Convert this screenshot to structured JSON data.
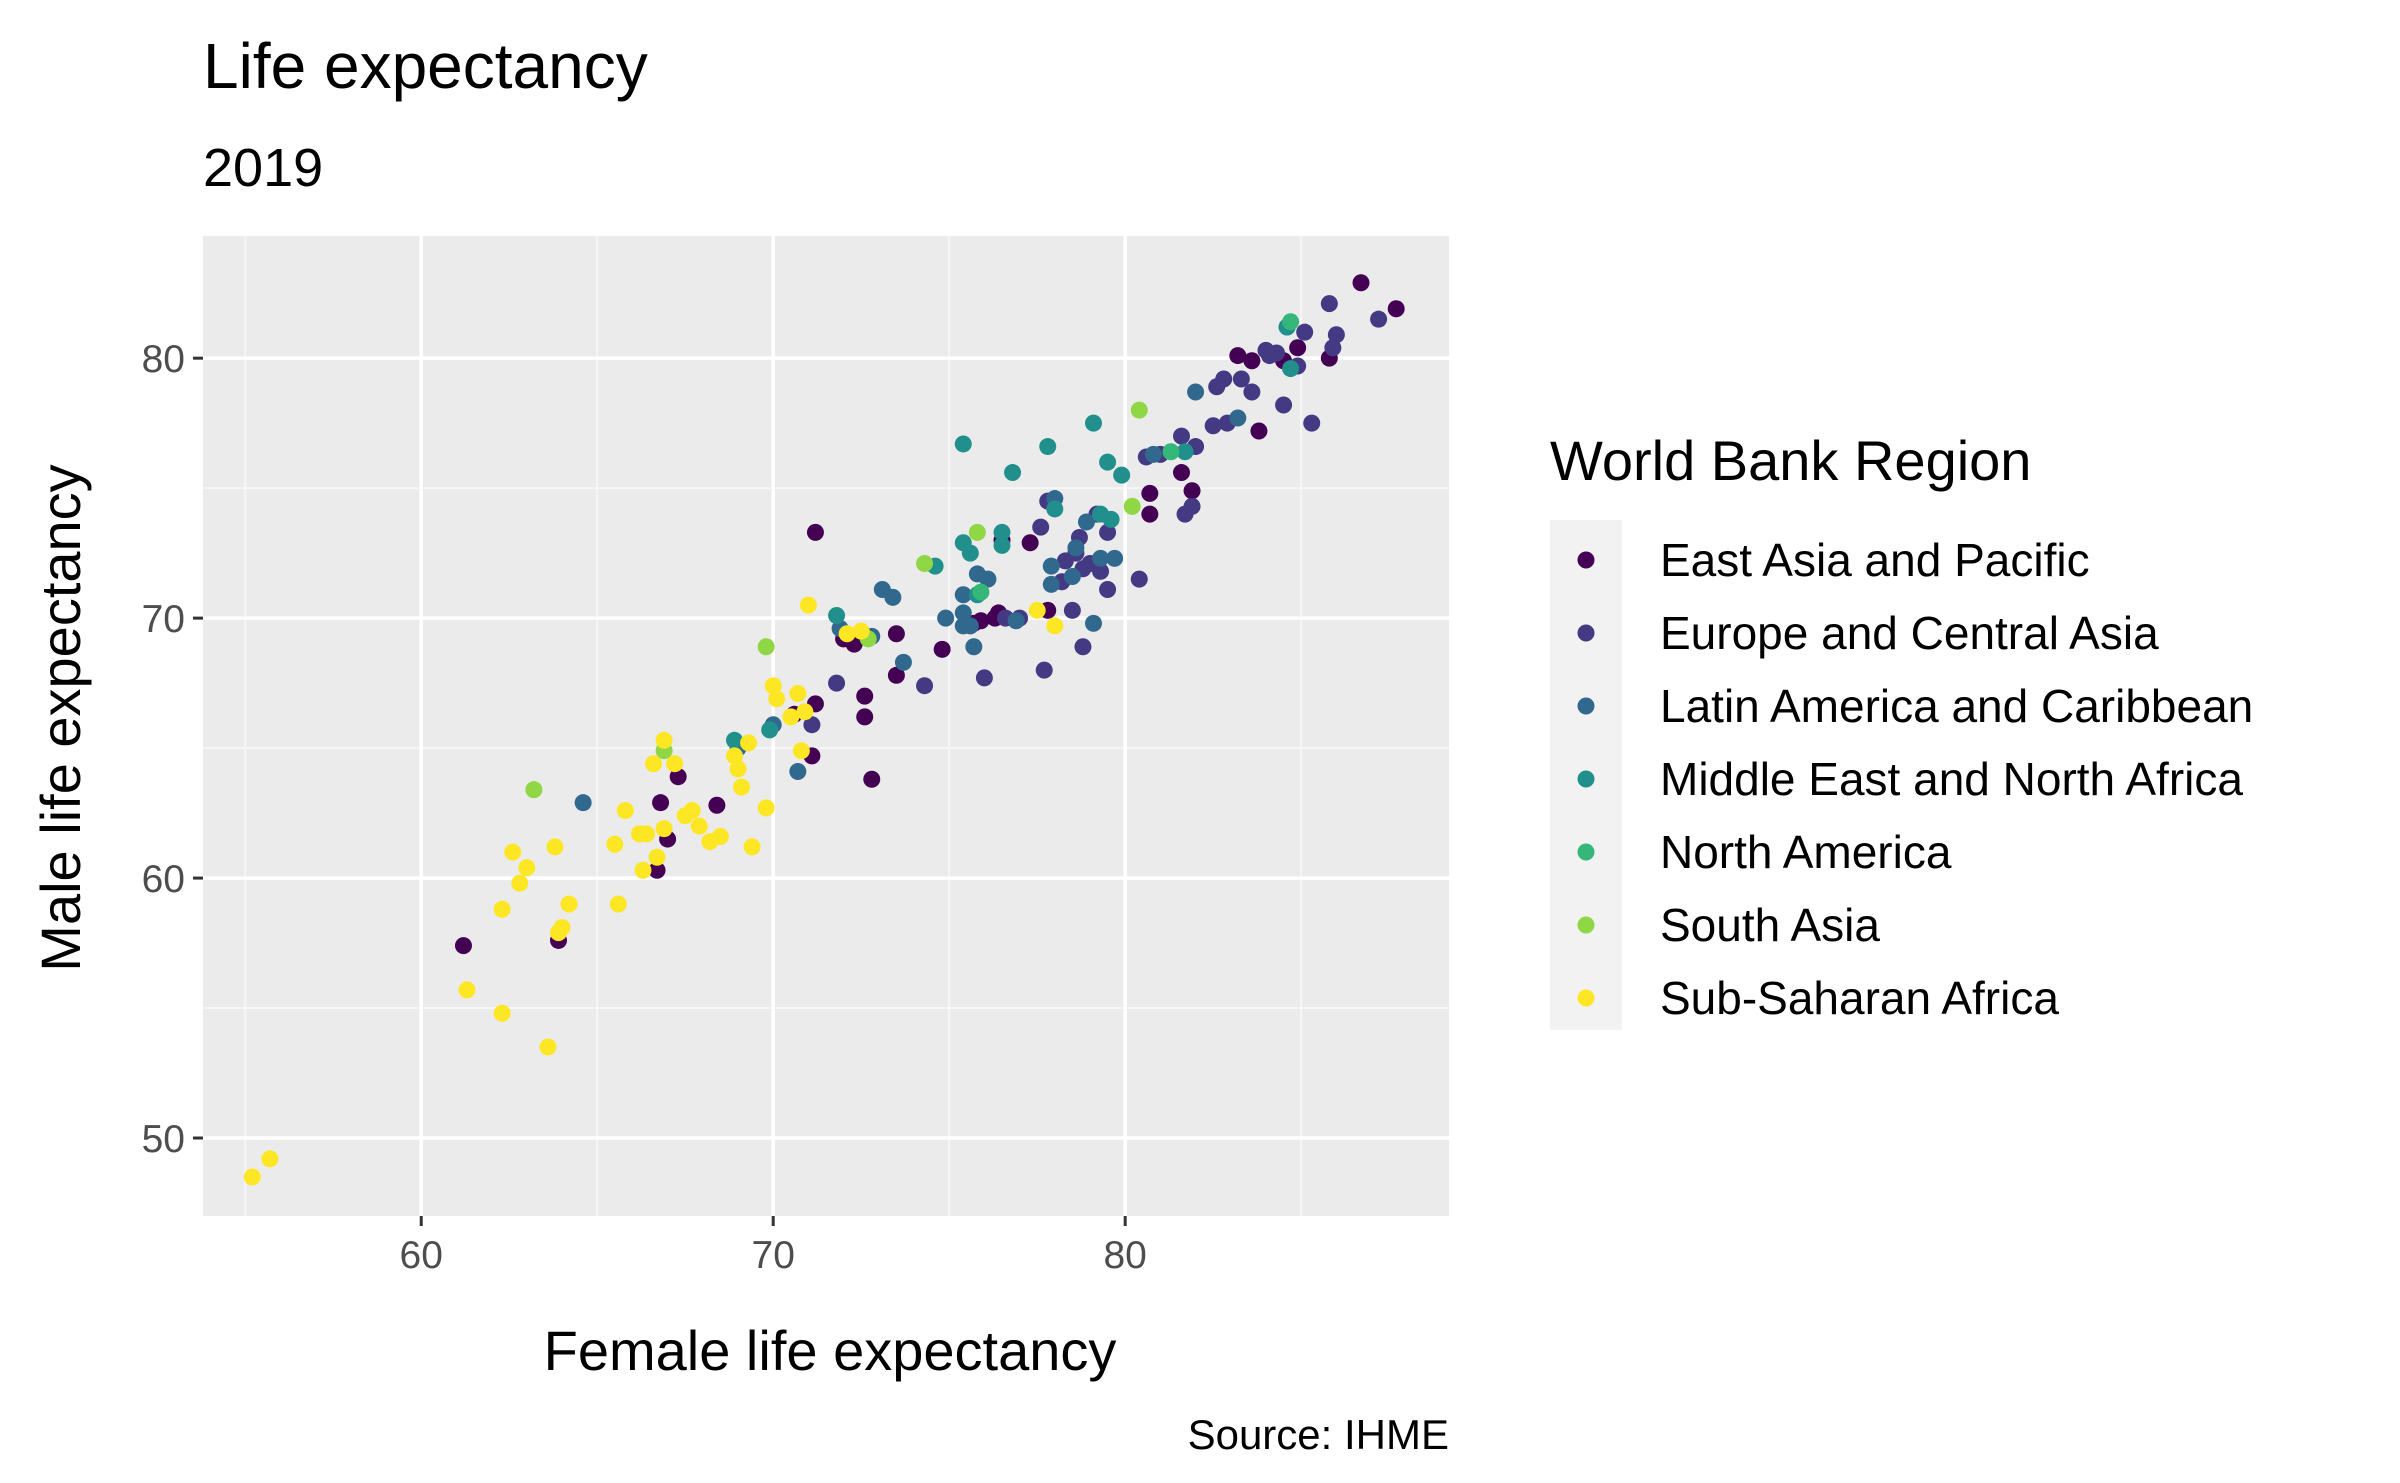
{
  "chart_data": {
    "type": "scatter",
    "title": "Life expectancy",
    "subtitle": "2019",
    "xlabel": "Female life expectancy",
    "ylabel": "Male life expectancy",
    "caption": "Source: IHME",
    "xlim": [
      53.8,
      89.2
    ],
    "ylim": [
      47,
      84.7
    ],
    "xticks": [
      60,
      70,
      80
    ],
    "yticks": [
      50,
      60,
      70,
      80
    ],
    "grid": true,
    "legend": {
      "title": "World Bank Region",
      "position": "right",
      "entries": [
        {
          "name": "East Asia and Pacific",
          "color": "#440154"
        },
        {
          "name": "Europe and Central Asia",
          "color": "#443a83"
        },
        {
          "name": "Latin America and Caribbean",
          "color": "#31688e"
        },
        {
          "name": "Middle East and North Africa",
          "color": "#21908d"
        },
        {
          "name": "North America",
          "color": "#35b779"
        },
        {
          "name": "South Asia",
          "color": "#8fd744"
        },
        {
          "name": "Sub-Saharan Africa",
          "color": "#fde725"
        }
      ]
    },
    "colors": {
      "panel": "#ebebeb",
      "grid_major": "#ffffff",
      "grid_minor": "#f6f6f6",
      "tick": "#333333"
    },
    "series": [
      {
        "name": "East Asia and Pacific",
        "points": [
          [
            86.7,
            82.9
          ],
          [
            87.7,
            81.9
          ],
          [
            83.2,
            80.1
          ],
          [
            83.6,
            79.9
          ],
          [
            84.5,
            79.9
          ],
          [
            85.8,
            80.0
          ],
          [
            84.9,
            80.4
          ],
          [
            83.8,
            77.2
          ],
          [
            81.6,
            75.6
          ],
          [
            80.7,
            74.8
          ],
          [
            81.9,
            74.9
          ],
          [
            76.5,
            73.0
          ],
          [
            76.4,
            70.2
          ],
          [
            75.9,
            69.9
          ],
          [
            71.2,
            73.3
          ],
          [
            70.6,
            66.3
          ],
          [
            72.6,
            67.0
          ],
          [
            72.6,
            66.2
          ],
          [
            73.5,
            67.8
          ],
          [
            72.8,
            63.8
          ],
          [
            71.1,
            64.7
          ],
          [
            71.2,
            66.7
          ],
          [
            72.3,
            69.0
          ],
          [
            72.0,
            69.2
          ],
          [
            73.5,
            69.4
          ],
          [
            77.8,
            70.3
          ],
          [
            76.3,
            70.0
          ],
          [
            75.7,
            69.8
          ],
          [
            74.8,
            68.8
          ],
          [
            66.8,
            62.9
          ],
          [
            67.3,
            63.9
          ],
          [
            68.4,
            62.8
          ],
          [
            66.7,
            60.3
          ],
          [
            67.0,
            61.5
          ],
          [
            63.9,
            57.6
          ],
          [
            61.2,
            57.4
          ],
          [
            77.3,
            72.9
          ],
          [
            80.7,
            74.0
          ]
        ]
      },
      {
        "name": "Europe and Central Asia",
        "points": [
          [
            87.2,
            81.5
          ],
          [
            85.8,
            82.1
          ],
          [
            85.1,
            81.0
          ],
          [
            85.9,
            80.4
          ],
          [
            84.6,
            81.2
          ],
          [
            84.3,
            80.2
          ],
          [
            84.0,
            80.3
          ],
          [
            83.3,
            79.2
          ],
          [
            82.6,
            78.9
          ],
          [
            82.8,
            79.2
          ],
          [
            83.6,
            78.7
          ],
          [
            82.9,
            77.5
          ],
          [
            82.5,
            77.4
          ],
          [
            81.6,
            77.0
          ],
          [
            82.0,
            76.6
          ],
          [
            84.5,
            78.2
          ],
          [
            85.3,
            77.5
          ],
          [
            80.6,
            76.2
          ],
          [
            81.0,
            76.3
          ],
          [
            81.9,
            74.3
          ],
          [
            81.7,
            74.0
          ],
          [
            79.5,
            73.3
          ],
          [
            79.0,
            72.1
          ],
          [
            78.6,
            72.5
          ],
          [
            79.3,
            71.8
          ],
          [
            80.4,
            71.5
          ],
          [
            79.5,
            71.1
          ],
          [
            78.8,
            71.9
          ],
          [
            78.3,
            72.2
          ],
          [
            79.2,
            74.0
          ],
          [
            78.7,
            73.1
          ],
          [
            77.6,
            73.5
          ],
          [
            77.8,
            74.5
          ],
          [
            77.7,
            68.0
          ],
          [
            78.8,
            68.9
          ],
          [
            76.0,
            67.7
          ],
          [
            74.3,
            67.4
          ],
          [
            71.8,
            67.5
          ],
          [
            71.1,
            65.9
          ],
          [
            76.6,
            70.0
          ],
          [
            78.2,
            71.4
          ],
          [
            77.0,
            70.0
          ],
          [
            78.5,
            70.3
          ],
          [
            84.1,
            80.1
          ],
          [
            84.9,
            79.7
          ],
          [
            86.0,
            80.9
          ]
        ]
      },
      {
        "name": "Latin America and Caribbean",
        "points": [
          [
            82.0,
            78.7
          ],
          [
            83.2,
            77.7
          ],
          [
            80.8,
            76.3
          ],
          [
            78.0,
            74.6
          ],
          [
            78.9,
            73.7
          ],
          [
            77.9,
            72.0
          ],
          [
            78.6,
            72.7
          ],
          [
            79.3,
            72.3
          ],
          [
            77.9,
            71.3
          ],
          [
            75.8,
            71.7
          ],
          [
            75.4,
            70.9
          ],
          [
            76.1,
            71.5
          ],
          [
            74.9,
            70.0
          ],
          [
            75.4,
            70.2
          ],
          [
            75.6,
            69.7
          ],
          [
            76.9,
            69.9
          ],
          [
            73.1,
            71.1
          ],
          [
            73.4,
            70.8
          ],
          [
            73.7,
            68.3
          ],
          [
            71.9,
            69.6
          ],
          [
            72.8,
            69.3
          ],
          [
            75.4,
            69.7
          ],
          [
            75.7,
            68.9
          ],
          [
            79.1,
            69.8
          ],
          [
            70.7,
            64.1
          ],
          [
            64.6,
            62.9
          ],
          [
            69.0,
            65.0
          ],
          [
            70.0,
            65.9
          ],
          [
            79.7,
            72.3
          ],
          [
            78.5,
            71.6
          ]
        ]
      },
      {
        "name": "Middle East and North Africa",
        "points": [
          [
            84.6,
            81.2
          ],
          [
            84.7,
            79.6
          ],
          [
            81.7,
            76.4
          ],
          [
            79.5,
            76.0
          ],
          [
            79.9,
            75.5
          ],
          [
            79.1,
            77.5
          ],
          [
            77.8,
            76.6
          ],
          [
            76.8,
            75.6
          ],
          [
            75.4,
            76.7
          ],
          [
            78.0,
            74.2
          ],
          [
            79.3,
            74.0
          ],
          [
            76.5,
            73.3
          ],
          [
            75.4,
            72.9
          ],
          [
            75.6,
            72.5
          ],
          [
            74.6,
            72.0
          ],
          [
            76.5,
            72.8
          ],
          [
            75.8,
            70.9
          ],
          [
            71.8,
            70.1
          ],
          [
            69.9,
            65.7
          ],
          [
            68.9,
            65.3
          ],
          [
            79.6,
            73.8
          ]
        ]
      },
      {
        "name": "North America",
        "points": [
          [
            84.7,
            81.4
          ],
          [
            81.3,
            76.4
          ],
          [
            75.9,
            71.0
          ]
        ]
      },
      {
        "name": "South Asia",
        "points": [
          [
            80.4,
            78.0
          ],
          [
            80.2,
            74.3
          ],
          [
            75.8,
            73.3
          ],
          [
            74.3,
            72.1
          ],
          [
            72.7,
            69.2
          ],
          [
            66.9,
            64.9
          ],
          [
            63.2,
            63.4
          ],
          [
            69.8,
            68.9
          ]
        ]
      },
      {
        "name": "Sub-Saharan Africa",
        "points": [
          [
            55.2,
            48.5
          ],
          [
            55.7,
            49.2
          ],
          [
            63.6,
            53.5
          ],
          [
            62.3,
            54.8
          ],
          [
            61.3,
            55.7
          ],
          [
            63.9,
            57.9
          ],
          [
            64.0,
            58.1
          ],
          [
            62.3,
            58.8
          ],
          [
            62.8,
            59.8
          ],
          [
            64.2,
            59.0
          ],
          [
            65.6,
            59.0
          ],
          [
            63.0,
            60.4
          ],
          [
            62.6,
            61.0
          ],
          [
            63.8,
            61.2
          ],
          [
            65.5,
            61.3
          ],
          [
            65.8,
            62.6
          ],
          [
            66.2,
            61.7
          ],
          [
            66.4,
            61.7
          ],
          [
            66.3,
            60.3
          ],
          [
            66.7,
            60.8
          ],
          [
            66.9,
            61.9
          ],
          [
            66.6,
            64.4
          ],
          [
            66.9,
            65.3
          ],
          [
            67.2,
            64.4
          ],
          [
            67.5,
            62.4
          ],
          [
            67.7,
            62.6
          ],
          [
            67.9,
            62.0
          ],
          [
            68.2,
            61.4
          ],
          [
            68.5,
            61.6
          ],
          [
            68.9,
            64.7
          ],
          [
            69.0,
            64.2
          ],
          [
            69.1,
            63.5
          ],
          [
            69.4,
            61.2
          ],
          [
            69.8,
            62.7
          ],
          [
            69.3,
            65.2
          ],
          [
            70.0,
            67.4
          ],
          [
            70.5,
            66.2
          ],
          [
            70.7,
            67.1
          ],
          [
            70.9,
            66.4
          ],
          [
            71.0,
            70.5
          ],
          [
            72.1,
            69.4
          ],
          [
            72.5,
            69.5
          ],
          [
            77.5,
            70.3
          ],
          [
            78.0,
            69.7
          ],
          [
            70.8,
            64.9
          ],
          [
            70.1,
            66.9
          ]
        ]
      }
    ]
  }
}
